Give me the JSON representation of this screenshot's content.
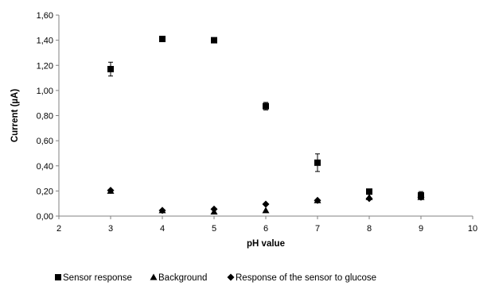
{
  "chart_data": {
    "type": "scatter",
    "title": "",
    "xlabel": "pH value",
    "ylabel": "Current (µA)",
    "xlim": [
      2,
      10
    ],
    "ylim": [
      0,
      1.6
    ],
    "x_ticks": [
      2,
      3,
      4,
      5,
      6,
      7,
      8,
      9,
      10
    ],
    "x_tick_labels": [
      "2",
      "3",
      "4",
      "5",
      "6",
      "7",
      "8",
      "9",
      "10"
    ],
    "y_ticks": [
      0,
      0.2,
      0.4,
      0.6,
      0.8,
      1.0,
      1.2,
      1.4,
      1.6
    ],
    "y_tick_labels": [
      "0,00",
      "0,20",
      "0,40",
      "0,60",
      "0,80",
      "1,00",
      "1,20",
      "1,40",
      "1,60"
    ],
    "grid": false,
    "legend_position": "bottom",
    "series": [
      {
        "name": "Sensor response",
        "marker": "square",
        "color": "#000000",
        "points": [
          {
            "x": 3,
            "y": 1.17,
            "err": 0.055
          },
          {
            "x": 4,
            "y": 1.41,
            "err": 0.0
          },
          {
            "x": 5,
            "y": 1.4,
            "err": 0.0
          },
          {
            "x": 6,
            "y": 0.875,
            "err": 0.03
          },
          {
            "x": 7,
            "y": 0.425,
            "err": 0.07
          },
          {
            "x": 8,
            "y": 0.195,
            "err": 0.0
          },
          {
            "x": 9,
            "y": 0.165,
            "err": 0.03
          }
        ]
      },
      {
        "name": "Background",
        "marker": "triangle",
        "color": "#000000",
        "points": [
          {
            "x": 3,
            "y": 0.2,
            "err": 0.0
          },
          {
            "x": 4,
            "y": 0.045,
            "err": 0.0
          },
          {
            "x": 5,
            "y": 0.035,
            "err": 0.0
          },
          {
            "x": 6,
            "y": 0.045,
            "err": 0.0
          },
          {
            "x": 7,
            "y": 0.125,
            "err": 0.0
          },
          {
            "x": 8,
            "y": 0.15,
            "err": 0.0
          },
          {
            "x": 9,
            "y": 0.15,
            "err": 0.0
          }
        ]
      },
      {
        "name": "Response of the sensor to glucose",
        "marker": "diamond",
        "color": "#000000",
        "points": [
          {
            "x": 3,
            "y": 0.205,
            "err": 0.0
          },
          {
            "x": 4,
            "y": 0.045,
            "err": 0.0
          },
          {
            "x": 5,
            "y": 0.055,
            "err": 0.0
          },
          {
            "x": 6,
            "y": 0.095,
            "err": 0.0
          },
          {
            "x": 7,
            "y": 0.125,
            "err": 0.0
          },
          {
            "x": 8,
            "y": 0.14,
            "err": 0.0
          },
          {
            "x": 9,
            "y": 0.15,
            "err": 0.0
          }
        ]
      }
    ]
  }
}
